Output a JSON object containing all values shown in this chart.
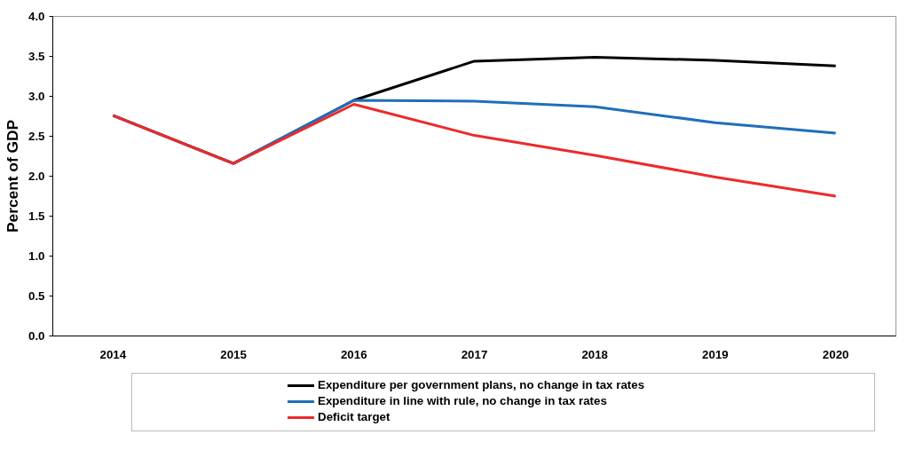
{
  "chart_data": {
    "type": "line",
    "ylabel": "Percent of GDP",
    "categories": [
      "2014",
      "2015",
      "2016",
      "2017",
      "2018",
      "2019",
      "2020"
    ],
    "series": [
      {
        "name": "Expenditure per government plans, no change in tax rates",
        "color": "#000000",
        "values": [
          2.76,
          2.16,
          2.95,
          3.44,
          3.49,
          3.45,
          3.38
        ]
      },
      {
        "name": "Expenditure in line with rule, no change in tax rates",
        "color": "#1f6fba",
        "values": [
          2.76,
          2.16,
          2.95,
          2.94,
          2.87,
          2.67,
          2.54
        ]
      },
      {
        "name": "Deficit target",
        "color": "#ee2a2a",
        "values": [
          2.76,
          2.16,
          2.9,
          2.51,
          2.26,
          1.99,
          1.75
        ]
      }
    ],
    "ylim": [
      0,
      4
    ],
    "yticks": [
      {
        "value": 0,
        "label": "0.0"
      },
      {
        "value": 0.5,
        "label": "0.5"
      },
      {
        "value": 1,
        "label": "1.0"
      },
      {
        "value": 1.5,
        "label": "1.5"
      },
      {
        "value": 2,
        "label": "2.0"
      },
      {
        "value": 2.5,
        "label": "2.5"
      },
      {
        "value": 3,
        "label": "3.0"
      },
      {
        "value": 3.5,
        "label": "3.5"
      },
      {
        "value": 4,
        "label": "4.0"
      }
    ],
    "grid": false,
    "legend": "bottom",
    "marker": "none",
    "line_style": "solid"
  }
}
